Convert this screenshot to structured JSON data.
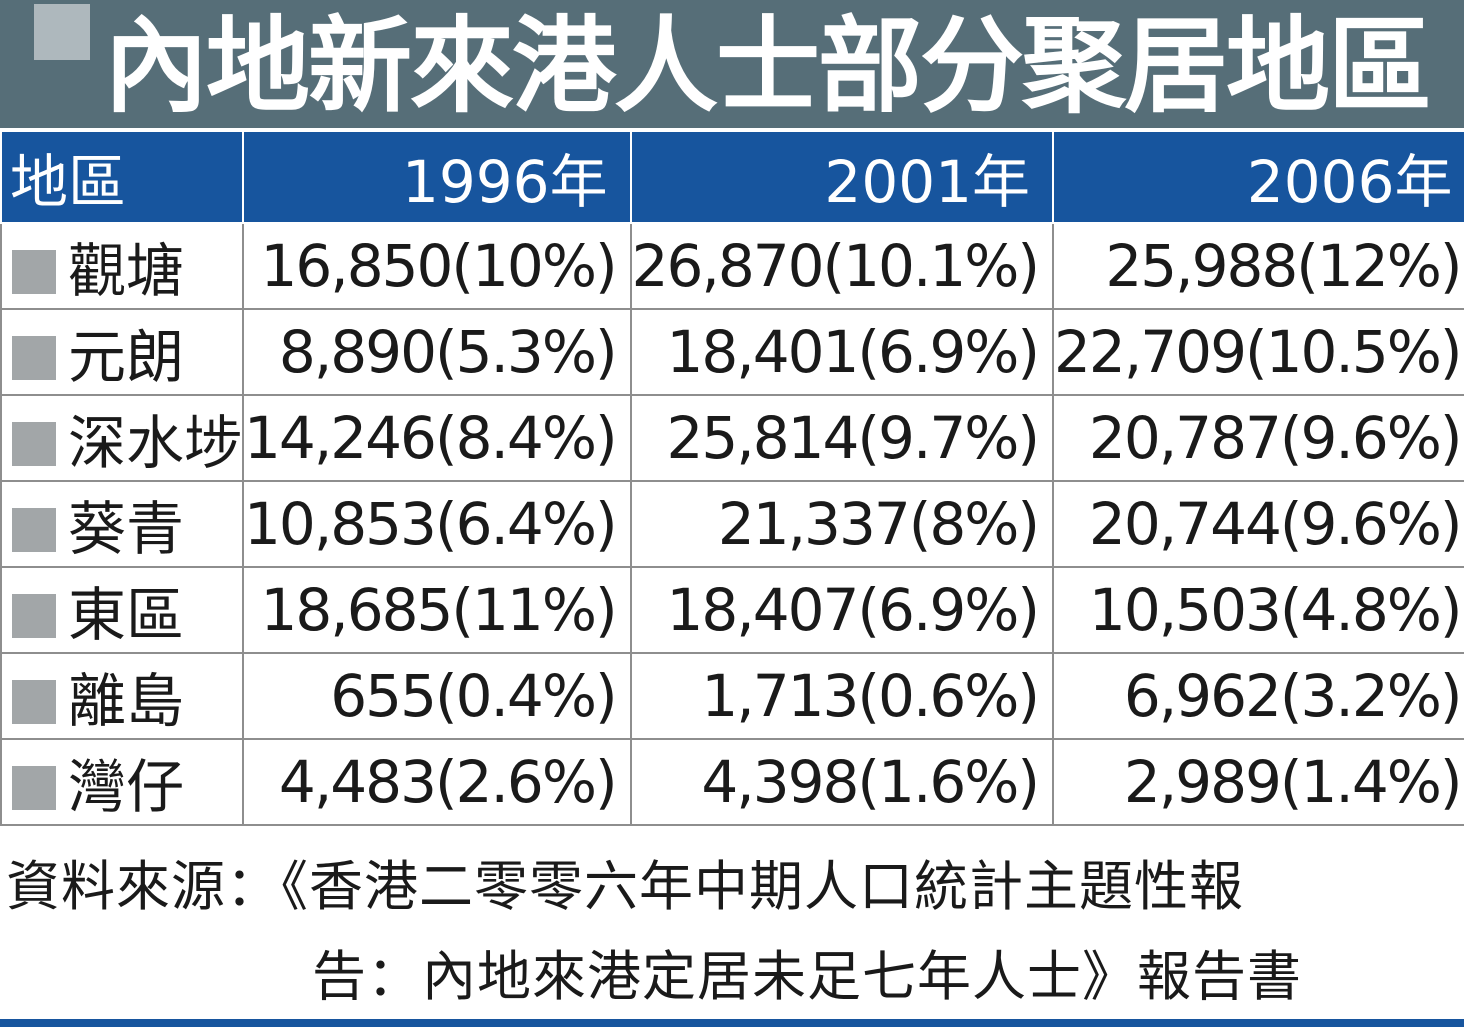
{
  "title": "內地新來港人士部分聚居地區",
  "chart_data": {
    "type": "table",
    "title": "內地新來港人士部分聚居地區",
    "columns": [
      "地區",
      "1996年",
      "2001年",
      "2006年"
    ],
    "rows": [
      {
        "district": "觀塘",
        "values": [
          "16,850(10%)",
          "26,870(10.1%)",
          "25,988(12%)"
        ]
      },
      {
        "district": "元朗",
        "values": [
          "8,890(5.3%)",
          "18,401(6.9%)",
          "22,709(10.5%)"
        ]
      },
      {
        "district": "深水埗",
        "values": [
          "14,246(8.4%)",
          "25,814(9.7%)",
          "20,787(9.6%)"
        ]
      },
      {
        "district": "葵青",
        "values": [
          "10,853(6.4%)",
          "21,337(8%)",
          "20,744(9.6%)"
        ]
      },
      {
        "district": "東區",
        "values": [
          "18,685(11%)",
          "18,407(6.9%)",
          "10,503(4.8%)"
        ]
      },
      {
        "district": "離島",
        "values": [
          "655(0.4%)",
          "1,713(0.6%)",
          "6,962(3.2%)"
        ]
      },
      {
        "district": "灣仔",
        "values": [
          "4,483(2.6%)",
          "4,398(1.6%)",
          "2,989(1.4%)"
        ]
      }
    ]
  },
  "source": {
    "line1": "資料來源：《香港二零零六年中期人口統計主題性報",
    "line2": "告：內地來港定居未足七年人士》報告書"
  },
  "colors": {
    "title_bg": "#566e78",
    "header_bg": "#17559e",
    "marker": "#a2a6a8"
  }
}
